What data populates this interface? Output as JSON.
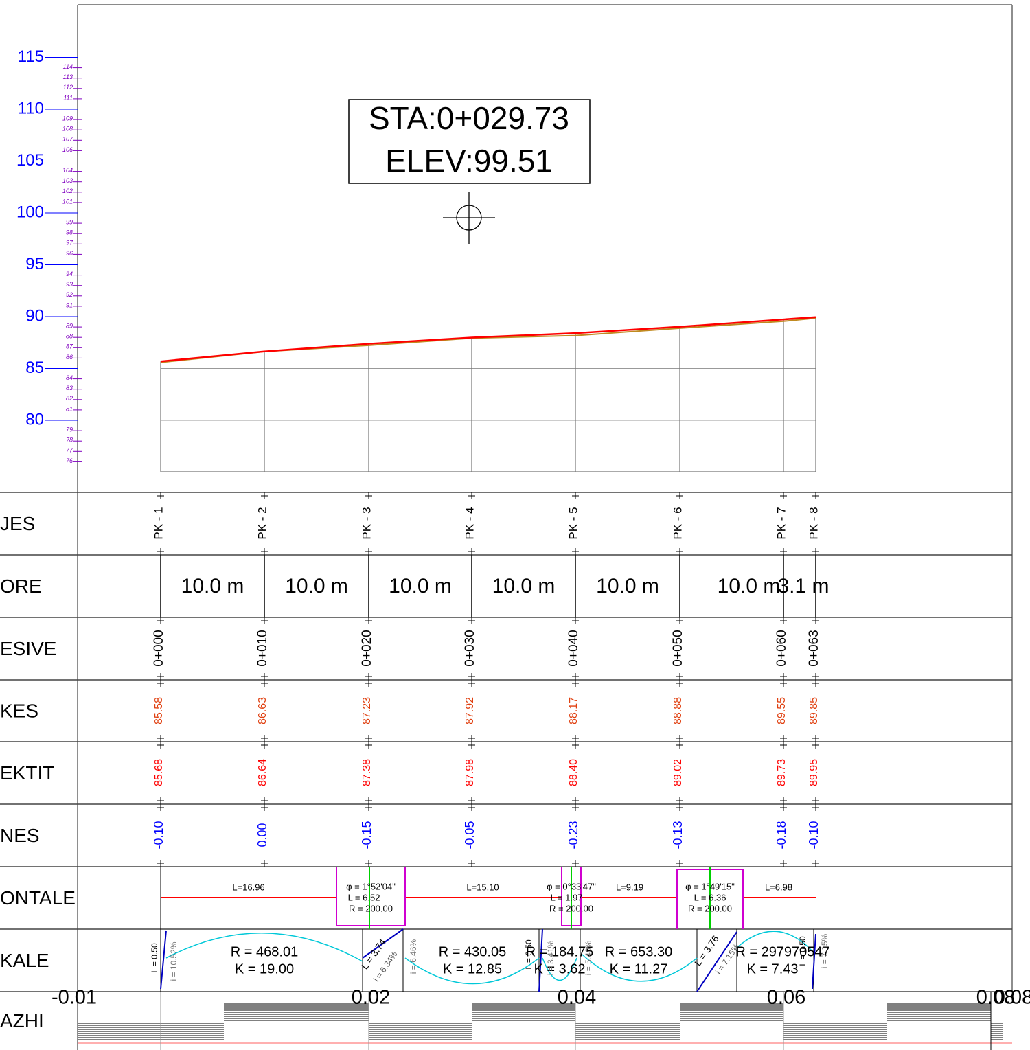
{
  "crosshair_label": {
    "station": "STA:0+029.73",
    "elevation": "ELEV:99.51"
  },
  "axis": {
    "major": [
      115,
      110,
      105,
      100,
      95,
      90,
      85,
      80
    ],
    "minor": [
      114,
      113,
      112,
      111,
      109,
      108,
      107,
      106,
      104,
      103,
      102,
      101,
      99,
      98,
      97,
      96,
      94,
      93,
      92,
      91,
      89,
      88,
      87,
      86,
      84,
      83,
      82,
      81,
      79,
      78,
      77,
      76
    ]
  },
  "rows": [
    "JES",
    "ORE",
    "ESIVE",
    "KES",
    "EKTIT",
    "NES",
    "ONTALE",
    "KALE",
    "AZHI"
  ],
  "stations": [
    {
      "pk": "PK - 1",
      "chainage": "0+000",
      "ground": "85.58",
      "design": "85.68",
      "diff": "-0.10"
    },
    {
      "pk": "PK - 2",
      "chainage": "0+010",
      "ground": "86.63",
      "design": "86.64",
      "diff": "0.00"
    },
    {
      "pk": "PK - 3",
      "chainage": "0+020",
      "ground": "87.23",
      "design": "87.38",
      "diff": "-0.15"
    },
    {
      "pk": "PK - 4",
      "chainage": "0+030",
      "ground": "87.92",
      "design": "87.98",
      "diff": "-0.05"
    },
    {
      "pk": "PK - 5",
      "chainage": "0+040",
      "ground": "88.17",
      "design": "88.40",
      "diff": "-0.23"
    },
    {
      "pk": "PK - 6",
      "chainage": "0+050",
      "ground": "88.88",
      "design": "89.02",
      "diff": "-0.13"
    },
    {
      "pk": "PK - 7",
      "chainage": "0+060",
      "ground": "89.55",
      "design": "89.73",
      "diff": "-0.18"
    },
    {
      "pk": "PK - 8",
      "chainage": "0+063",
      "ground": "89.85",
      "design": "89.95",
      "diff": "-0.10"
    }
  ],
  "distances": [
    "10.0 m",
    "10.0 m",
    "10.0 m",
    "10.0 m",
    "10.0 m",
    "10.0 m",
    "3.1 m"
  ],
  "horizontal": [
    "L=16.96",
    "φ = 1°52'04\"",
    "L = 6.52",
    "R = 200.00",
    "L=15.10",
    "φ = 0°33'47\"",
    "L = 1.97",
    "R = 200.00",
    "L=9.19",
    "φ = 1°49'15\"",
    "L = 6.36",
    "R = 200.00",
    "L=6.98"
  ],
  "vertical": [
    "L = 0.50",
    "i = 10.52%",
    "R = 468.01",
    "K = 19.00",
    "L = 3.74",
    "i = 6.34%",
    "i = 6.46%",
    "R = 430.05",
    "K = 12.85",
    "L = 0.50",
    "R = 184.75",
    "K = 3.62",
    "i = 3.41%",
    "i = 5.40%",
    "R = 653.30",
    "K = 11.27",
    "L = 3.76",
    "i = 7.15%",
    "R = 297970547",
    "K = 7.43",
    "L = 0.50",
    "i = 7.15%"
  ],
  "bottom_axis": [
    "-0.01",
    "0.02",
    "0.04",
    "0.06",
    "0.08",
    "0.08"
  ]
}
